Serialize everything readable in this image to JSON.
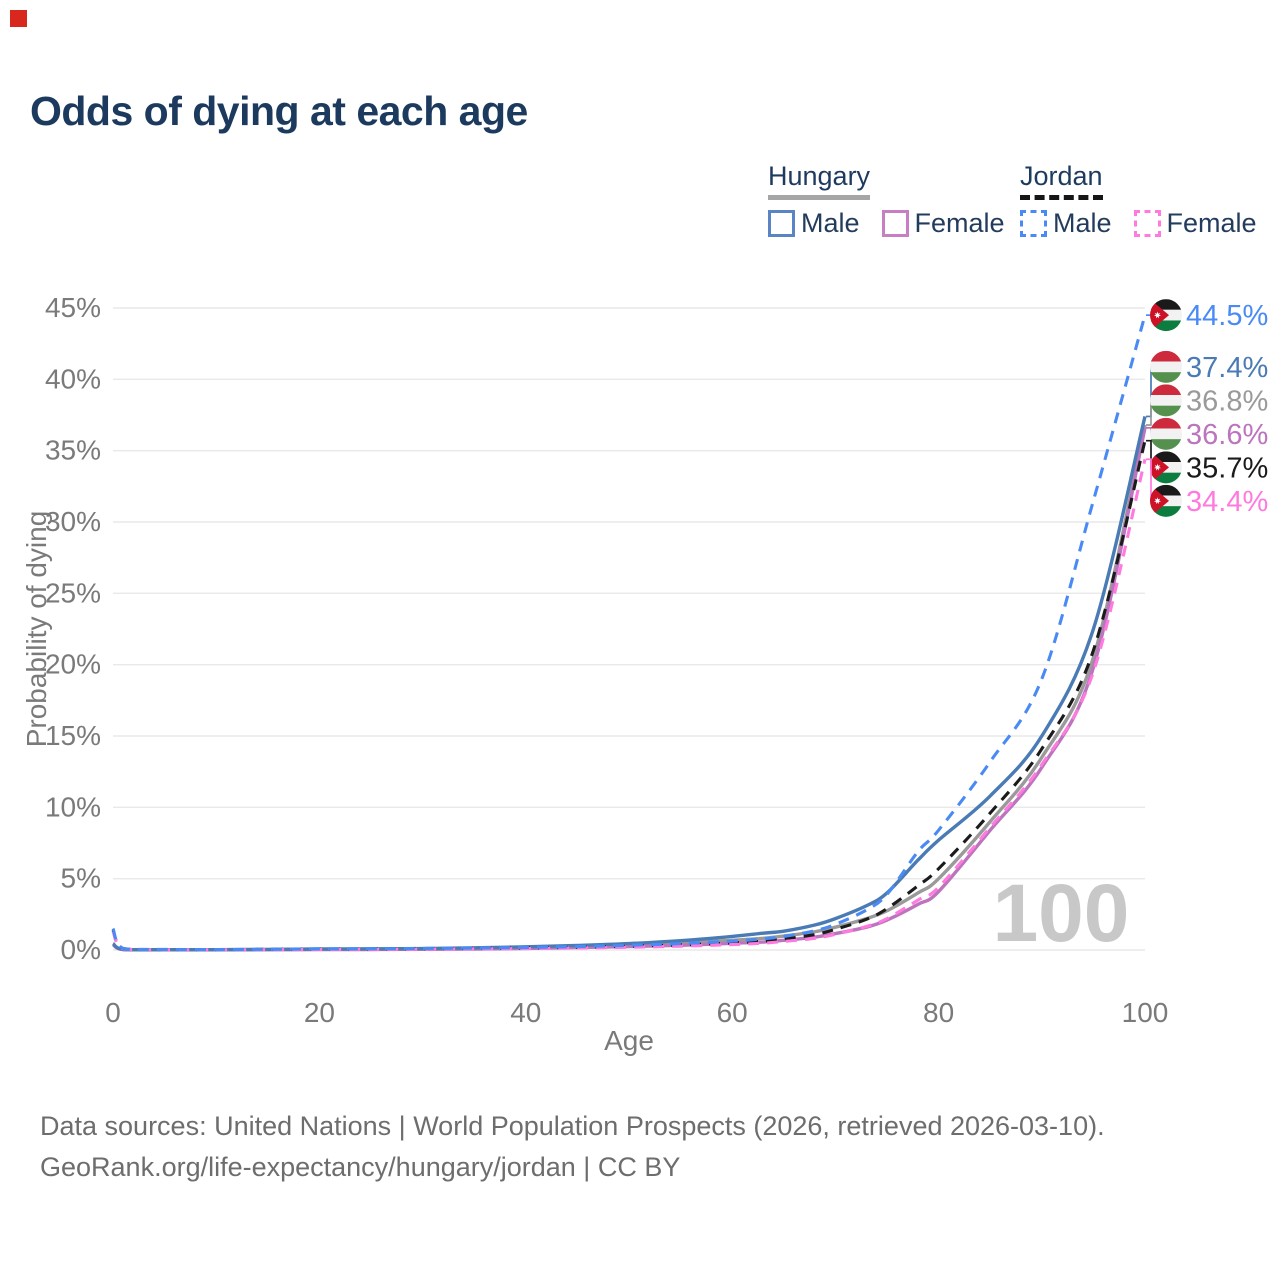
{
  "title": "Odds of dying at each age",
  "legend": {
    "hungary": {
      "title": "Hungary",
      "male": "Male",
      "female": "Female"
    },
    "jordan": {
      "title": "Jordan",
      "male": "Male",
      "female": "Female"
    }
  },
  "footer": {
    "line1": "Data sources: United Nations | World Population Prospects (2026, retrieved 2026-03-10).",
    "line2": "GeoRank.org/life-expectancy/hungary/jordan | CC BY"
  },
  "colors": {
    "title": "#1c3a5e",
    "axis_text": "#7a7a7a",
    "grid": "#e9e9e9",
    "watermark": "#c8c8c8",
    "hungary_male": "#4a7bb5",
    "hungary_female": "#bb74bd",
    "hungary_both": "#9a9a9a",
    "jordan_male": "#4a8af4",
    "jordan_female": "#ff7ade",
    "jordan_both": "#1b1b1b"
  },
  "chart_data": {
    "type": "line",
    "title": "Odds of dying at each age",
    "xlabel": "Age",
    "ylabel": "Probability of dying",
    "xlim": [
      0,
      100
    ],
    "ylim": [
      0,
      45
    ],
    "x_ticks": [
      0,
      20,
      40,
      60,
      80,
      100
    ],
    "y_ticks": [
      "0%",
      "5%",
      "10%",
      "15%",
      "20%",
      "25%",
      "30%",
      "35%",
      "40%",
      "45%"
    ],
    "grid": true,
    "watermark": "100",
    "legend_position": "top-right",
    "ages": [
      0,
      1,
      5,
      10,
      15,
      20,
      25,
      30,
      35,
      40,
      45,
      50,
      55,
      60,
      63,
      65,
      68,
      70,
      73,
      75,
      78,
      80,
      85,
      90,
      95,
      100
    ],
    "series": [
      {
        "name": "Hungary Male",
        "country": "Hungary",
        "sex": "Male",
        "line": "solid",
        "color": "#4a7bb5",
        "flag": "hungary",
        "end_label": "37.4%",
        "values": [
          0.45,
          0.04,
          0.02,
          0.02,
          0.04,
          0.07,
          0.08,
          0.1,
          0.15,
          0.22,
          0.32,
          0.45,
          0.65,
          0.95,
          1.18,
          1.32,
          1.75,
          2.2,
          3.1,
          4.0,
          6.3,
          7.7,
          10.8,
          15.0,
          22.5,
          37.4
        ]
      },
      {
        "name": "Hungary Female",
        "country": "Hungary",
        "sex": "Female",
        "line": "solid",
        "color": "#bb74bd",
        "flag": "hungary",
        "end_label": "36.6%",
        "values": [
          0.38,
          0.03,
          0.015,
          0.015,
          0.02,
          0.03,
          0.035,
          0.05,
          0.07,
          0.11,
          0.17,
          0.24,
          0.33,
          0.47,
          0.56,
          0.68,
          0.9,
          1.15,
          1.6,
          2.1,
          3.2,
          4.1,
          8.4,
          12.8,
          19.8,
          36.6
        ]
      },
      {
        "name": "Hungary Both sexes",
        "country": "Hungary",
        "sex": "Both sexes",
        "line": "solid",
        "color": "#9a9a9a",
        "flag": "hungary",
        "end_label": "36.8%",
        "values": [
          0.42,
          0.035,
          0.02,
          0.02,
          0.03,
          0.05,
          0.06,
          0.08,
          0.11,
          0.16,
          0.23,
          0.33,
          0.47,
          0.68,
          0.82,
          0.98,
          1.28,
          1.6,
          2.2,
          2.75,
          4.0,
          5.0,
          9.0,
          13.5,
          20.5,
          36.8
        ]
      },
      {
        "name": "Jordan Male",
        "country": "Jordan",
        "sex": "Male",
        "line": "dashed",
        "color": "#4a8af4",
        "flag": "jordan",
        "end_label": "44.5%",
        "values": [
          1.5,
          0.1,
          0.04,
          0.03,
          0.05,
          0.08,
          0.09,
          0.11,
          0.14,
          0.18,
          0.24,
          0.33,
          0.45,
          0.62,
          0.78,
          0.95,
          1.35,
          1.8,
          2.8,
          3.9,
          6.9,
          8.4,
          13.2,
          19.0,
          31.5,
          44.5
        ]
      },
      {
        "name": "Jordan Female",
        "country": "Jordan",
        "sex": "Female",
        "line": "dashed",
        "color": "#ff7ade",
        "flag": "jordan",
        "end_label": "34.4%",
        "values": [
          1.3,
          0.08,
          0.025,
          0.02,
          0.03,
          0.04,
          0.05,
          0.06,
          0.08,
          0.1,
          0.14,
          0.19,
          0.27,
          0.38,
          0.48,
          0.6,
          0.82,
          1.1,
          1.65,
          2.2,
          3.5,
          4.4,
          8.6,
          13.0,
          19.5,
          34.4
        ]
      },
      {
        "name": "Jordan Both sexes",
        "country": "Jordan",
        "sex": "Both sexes",
        "line": "dashed",
        "color": "#1b1b1b",
        "flag": "jordan",
        "end_label": "35.7%",
        "values": [
          1.4,
          0.09,
          0.03,
          0.025,
          0.04,
          0.06,
          0.07,
          0.09,
          0.11,
          0.14,
          0.19,
          0.26,
          0.36,
          0.5,
          0.62,
          0.78,
          1.08,
          1.45,
          2.15,
          2.9,
          4.5,
          5.7,
          9.6,
          14.1,
          21.0,
          35.7
        ]
      }
    ]
  }
}
